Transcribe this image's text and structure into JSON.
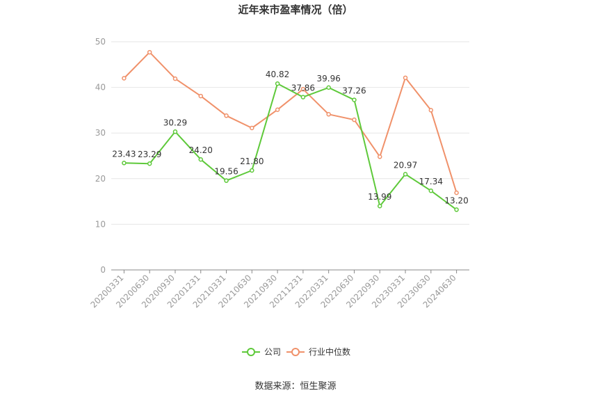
{
  "chart_data": {
    "type": "line",
    "title": "近年来市盈率情况（倍）",
    "xlabel": "",
    "ylabel": "",
    "ylim": [
      0,
      50
    ],
    "yticks": [
      0,
      10,
      20,
      30,
      40,
      50
    ],
    "grid": true,
    "legend_position": "bottom",
    "categories": [
      "20200331",
      "20200630",
      "20200930",
      "20201231",
      "20210331",
      "20210630",
      "20210930",
      "20211231",
      "20220331",
      "20220630",
      "20220930",
      "20230331",
      "20230630",
      "20240630"
    ],
    "series": [
      {
        "name": "公司",
        "color": "#5ec93a",
        "values": [
          23.43,
          23.29,
          30.29,
          24.2,
          19.56,
          21.8,
          40.82,
          37.86,
          39.96,
          37.26,
          13.99,
          20.97,
          17.34,
          13.2
        ],
        "labels": [
          "23.43",
          "23.29",
          "30.29",
          "24.20",
          "19.56",
          "21.80",
          "40.82",
          "37.86",
          "39.96",
          "37.26",
          "13.99",
          "20.97",
          "17.34",
          "13.20"
        ]
      },
      {
        "name": "行业中位数",
        "color": "#f0916a",
        "values": [
          42.0,
          47.7,
          41.9,
          38.1,
          33.8,
          31.1,
          35.1,
          39.6,
          34.1,
          32.9,
          24.8,
          42.1,
          35.0,
          16.9
        ]
      }
    ]
  },
  "source": "数据来源：恒生聚源"
}
